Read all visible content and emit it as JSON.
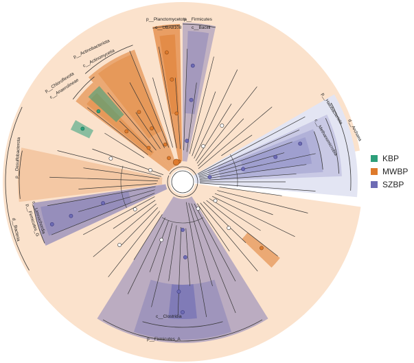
{
  "colors": {
    "background": "#ffffff",
    "bacteria_fill": "#fbe2cc",
    "archaea_fill": "#e3e5f3",
    "mwbp": "#de7a2c",
    "szbp": "#6d6bb4",
    "kbp": "#2d9f7a",
    "branch": "#333333"
  },
  "legend": {
    "items": [
      {
        "label": "KBP",
        "color": "#2d9f7a"
      },
      {
        "label": "MWBP",
        "color": "#de7a2c"
      },
      {
        "label": "SZBP",
        "color": "#6d6bb4"
      }
    ]
  },
  "tree_labels": {
    "archaea": "d__Archaea",
    "halobacteriota": "p__Halobacteriota",
    "methanomicrobia": "c__Methanomicrobia",
    "bacteria": "d__Bacteria",
    "chloroflexota": "p__Chloroflexota",
    "anaerolineae": "c__Anaerolineae",
    "actinobacteriota": "p__Actinobacteriota",
    "actinomycetia": "c__Actinomycetia",
    "planctomycetota": "p__Planctomycetota",
    "uba8108": "c__UBA8108",
    "firmicutes": "p__Firmicutes",
    "bacilli": "c__Bacilli",
    "desulfobacterota": "p__Desulfobacterota",
    "firmicutes_g": "p__Firmicutes_G",
    "limnochordia": "c__Limnochordia",
    "firmicutes_a": "p__Firmicutes_A",
    "clostridia": "c__Clostridia"
  }
}
